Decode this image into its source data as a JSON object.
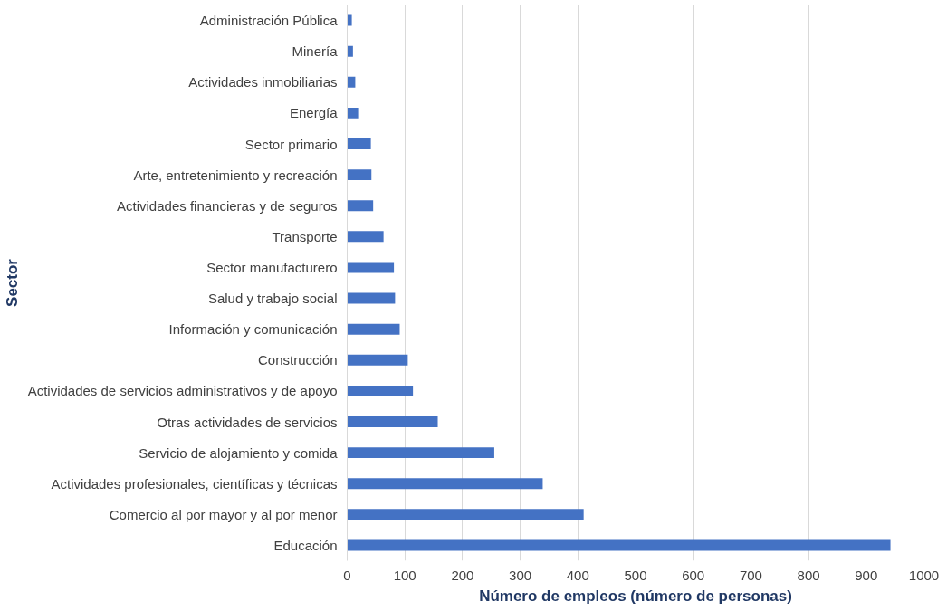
{
  "chart_data": {
    "type": "bar",
    "orientation": "horizontal",
    "xlabel": "Número de empleos (número de personas)",
    "ylabel": "Sector",
    "categories": [
      "Administración Pública",
      "Minería",
      "Actividades inmobiliarias",
      "Energía",
      "Sector primario",
      "Arte, entretenimiento y recreación",
      "Actividades financieras y de seguros",
      "Transporte",
      "Sector manufacturero",
      "Salud y trabajo social",
      "Información y comunicación",
      "Construcción",
      "Actividades de servicios administrativos y de apoyo",
      "Otras actividades de servicios",
      "Servicio de alojamiento y comida",
      "Actividades profesionales, científicas y técnicas",
      "Comercio al por mayor y al por menor",
      "Educación"
    ],
    "values": [
      8,
      10,
      14,
      19,
      41,
      42,
      45,
      63,
      81,
      83,
      91,
      105,
      114,
      157,
      255,
      339,
      410,
      942
    ],
    "color": "#4472c4",
    "xlim": [
      0,
      1000
    ],
    "xticks": [
      0,
      100,
      200,
      300,
      400,
      500,
      600,
      700,
      800,
      900,
      1000
    ],
    "grid": "x"
  }
}
